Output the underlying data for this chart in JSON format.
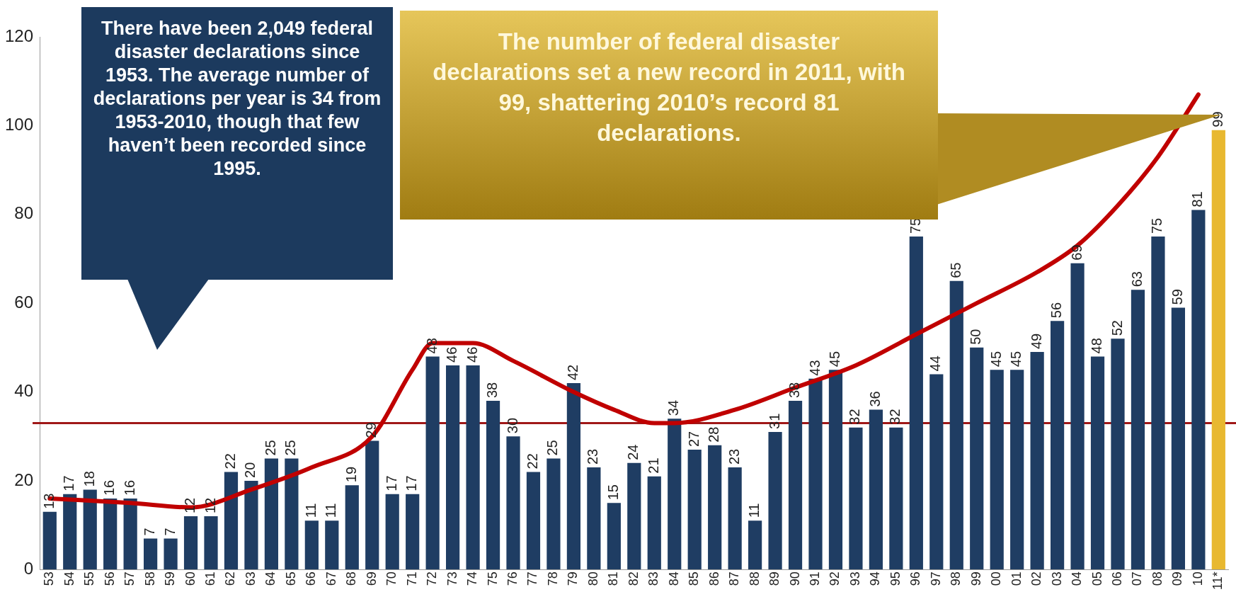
{
  "chart_data": {
    "type": "bar",
    "categories": [
      "53",
      "54",
      "55",
      "56",
      "57",
      "58",
      "59",
      "60",
      "61",
      "62",
      "63",
      "64",
      "65",
      "66",
      "67",
      "68",
      "69",
      "70",
      "71",
      "72",
      "73",
      "74",
      "75",
      "76",
      "77",
      "78",
      "79",
      "80",
      "81",
      "82",
      "83",
      "84",
      "85",
      "86",
      "87",
      "88",
      "89",
      "90",
      "91",
      "92",
      "93",
      "94",
      "95",
      "96",
      "97",
      "98",
      "99",
      "00",
      "01",
      "02",
      "03",
      "04",
      "05",
      "06",
      "07",
      "08",
      "09",
      "10",
      "11*"
    ],
    "series": [
      {
        "colors": [
          "#1f3d63",
          "#1f3d63",
          "#1f3d63",
          "#1f3d63",
          "#1f3d63",
          "#1f3d63",
          "#1f3d63",
          "#1f3d63",
          "#1f3d63",
          "#1f3d63",
          "#1f3d63",
          "#1f3d63",
          "#1f3d63",
          "#1f3d63",
          "#1f3d63",
          "#1f3d63",
          "#1f3d63",
          "#1f3d63",
          "#1f3d63",
          "#1f3d63",
          "#1f3d63",
          "#1f3d63",
          "#1f3d63",
          "#1f3d63",
          "#1f3d63",
          "#1f3d63",
          "#1f3d63",
          "#1f3d63",
          "#1f3d63",
          "#1f3d63",
          "#1f3d63",
          "#1f3d63",
          "#1f3d63",
          "#1f3d63",
          "#1f3d63",
          "#1f3d63",
          "#1f3d63",
          "#1f3d63",
          "#1f3d63",
          "#1f3d63",
          "#1f3d63",
          "#1f3d63",
          "#1f3d63",
          "#1f3d63",
          "#1f3d63",
          "#1f3d63",
          "#1f3d63",
          "#1f3d63",
          "#1f3d63",
          "#1f3d63",
          "#1f3d63",
          "#1f3d63",
          "#1f3d63",
          "#1f3d63",
          "#1f3d63",
          "#1f3d63",
          "#1f3d63",
          "#1f3d63",
          "#e8b830"
        ],
        "values": [
          13,
          17,
          18,
          16,
          16,
          7,
          7,
          12,
          12,
          22,
          20,
          25,
          25,
          11,
          11,
          19,
          29,
          17,
          17,
          48,
          46,
          46,
          38,
          30,
          22,
          25,
          42,
          23,
          15,
          24,
          21,
          34,
          27,
          28,
          23,
          11,
          31,
          38,
          43,
          45,
          32,
          36,
          32,
          75,
          44,
          65,
          50,
          45,
          45,
          49,
          56,
          69,
          48,
          52,
          63,
          75,
          59,
          81,
          99
        ],
        "value_labels": [
          "13",
          "17",
          "18",
          "16",
          "16",
          "7",
          "7",
          "12",
          "12",
          "22",
          "20",
          "25",
          "25",
          "11",
          "11",
          "19",
          "29",
          "17",
          "17",
          "48",
          "46",
          "46",
          "38",
          "30",
          "22",
          "25",
          "42",
          "23",
          "15",
          "24",
          "21",
          "34",
          "27",
          "28",
          "23",
          "11",
          "31",
          "38",
          "43",
          "45",
          "32",
          "36",
          "32",
          "75",
          "44",
          "65",
          "50",
          "45",
          "45",
          "49",
          "56",
          "69",
          "48",
          "52",
          "63",
          "75",
          "59",
          "81",
          "99"
        ]
      },
      {
        "type": "line",
        "color": "#c00000",
        "values": [
          16,
          null,
          null,
          null,
          15,
          null,
          null,
          14,
          null,
          null,
          18,
          null,
          null,
          23,
          null,
          null,
          30,
          null,
          45,
          51,
          null,
          51,
          null,
          47,
          null,
          null,
          40,
          null,
          36,
          null,
          33,
          33,
          null,
          null,
          36,
          null,
          null,
          41,
          null,
          null,
          46,
          null,
          null,
          53,
          null,
          null,
          60,
          null,
          null,
          67,
          null,
          73,
          null,
          82,
          null,
          93,
          null,
          107,
          null
        ]
      }
    ],
    "ref_lines": [
      {
        "axis": "y",
        "value": 33,
        "color": "#a01818"
      }
    ],
    "ylim": [
      0,
      120
    ],
    "yticks": [
      0,
      20,
      40,
      60,
      80,
      100,
      120
    ],
    "grid": false,
    "legend": false,
    "annotations": [
      "There have been 2,049 federal disaster declarations since 1953.  The average number of declarations per year is 34 from 1953-2010, though that few haven’t been recorded since 1995.",
      "The number of federal disaster declarations set a new record in 2011, with 99, shattering 2010’s record 81 declarations."
    ]
  }
}
